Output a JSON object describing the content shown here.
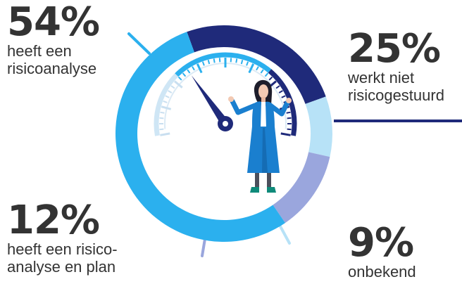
{
  "chart_data": {
    "type": "pie",
    "variant": "donut",
    "start_angle_deg": 340,
    "direction": "clockwise",
    "slices": [
      {
        "value": 25,
        "pct_label": "25%",
        "label_lines": [
          "werkt niet",
          "risicogestuurd"
        ],
        "color": "#1f2a7a"
      },
      {
        "value": 9,
        "pct_label": "9%",
        "label_lines": [
          "onbekend"
        ],
        "color": "#b7e2f7"
      },
      {
        "value": 12,
        "pct_label": "12%",
        "label_lines": [
          "heeft een risico-",
          "analyse en plan"
        ],
        "color": "#9aa6dd"
      },
      {
        "value": 54,
        "pct_label": "54%",
        "label_lines": [
          "heeft een",
          "risicoanalyse"
        ],
        "color": "#2bb0ee"
      }
    ]
  },
  "colors": {
    "text": "#333333",
    "gauge_scale": "#2bb0ee",
    "needle": "#1f2a7a",
    "figure_suit": "#1a7fcf"
  },
  "illustration": {
    "subject": "businesswoman-shrugging-in-front-of-speedometer-gauge"
  }
}
